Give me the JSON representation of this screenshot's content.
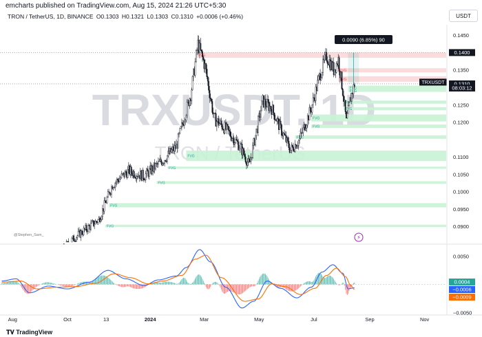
{
  "header": {
    "publish_line": "emcharts published on TradingView.com, Aug 15, 2024 21:26 UTC+5:30",
    "symbol_full": "TRON / TetherUS, 1D, BINANCE",
    "ohlc": {
      "o": "O0.1303",
      "h": "H0.1321",
      "l": "L0.1303",
      "c": "C0.1310",
      "chg": "+0.0006 (+0.46%)"
    },
    "currency": "USDT"
  },
  "watermark": {
    "symbol": "TRXUSDT, 1D",
    "name": "TRON / TetherUS"
  },
  "measure_label": "0.0090 (6.85%) 90",
  "author_tag": "@Stephen_Sam_",
  "footer": {
    "brand": "TradingView"
  },
  "colors": {
    "up": "#131722",
    "down": "#131722",
    "fvg_green": "#c8f2d5",
    "fvg_red": "#fbd7d7",
    "macd": "#2962ff",
    "signal": "#ff6d00",
    "hist_up": "#26a69a",
    "hist_down": "#ef5350"
  },
  "chart_data": [
    {
      "type": "candlestick",
      "title": "TRON / TetherUS, 1D, BINANCE",
      "ylim": [
        0.0855,
        0.148
      ],
      "y_ticks": [
        "0.1450",
        "0.1350",
        "0.1300",
        "0.1250",
        "0.1200",
        "0.1100",
        "0.1050",
        "0.1000",
        "0.0950",
        "0.0900"
      ],
      "y_tick_values": [
        0.145,
        0.135,
        0.13,
        0.125,
        0.12,
        0.11,
        0.105,
        0.1,
        0.095,
        0.09
      ],
      "x_ticks": [
        "Aug",
        "Oct",
        "13",
        "2024",
        "Mar",
        "May",
        "Jul",
        "Sep",
        "Nov"
      ],
      "x_tick_dates": [
        "2023-08-01",
        "2023-10-01",
        "2023-11-13",
        "2024-01-01",
        "2024-03-01",
        "2024-05-01",
        "2024-07-01",
        "2024-09-01",
        "2024-11-01"
      ],
      "price_labels": [
        {
          "text": "0.1400",
          "value": 0.14,
          "style": "dark"
        },
        {
          "text": "TRXUSDT",
          "value": 0.1315,
          "style": "dark"
        },
        {
          "text": "0.1310",
          "value": 0.131,
          "style": "dark"
        },
        {
          "text": "08:03:12",
          "value": 0.1298,
          "style": "dark"
        }
      ],
      "horizontal_lines": [
        0.14,
        0.131
      ],
      "fvg_zones": [
        {
          "kind": "red",
          "from": 0.1385,
          "to": 0.14,
          "start": "2024-02-22",
          "label": "FVG"
        },
        {
          "kind": "red",
          "from": 0.1343,
          "to": 0.1355,
          "start": "2024-07-28",
          "label": "FVG"
        },
        {
          "kind": "red",
          "from": 0.1316,
          "to": 0.1332,
          "start": "2024-07-28",
          "label": "FVG"
        },
        {
          "kind": "green",
          "from": 0.1293,
          "to": 0.1305,
          "start": "2024-08-08",
          "label": "FVG"
        },
        {
          "kind": "green",
          "from": 0.1287,
          "to": 0.1293,
          "start": "2024-08-08",
          "label": "FVG"
        },
        {
          "kind": "green",
          "from": 0.1253,
          "to": 0.1262,
          "start": "2024-08-03",
          "label": "FVG"
        },
        {
          "kind": "green",
          "from": 0.1234,
          "to": 0.1243,
          "start": "2024-08-03",
          "label": "FVG"
        },
        {
          "kind": "green",
          "from": 0.1202,
          "to": 0.1222,
          "start": "2024-06-28",
          "label": "FVG"
        },
        {
          "kind": "green",
          "from": 0.1183,
          "to": 0.1193,
          "start": "2024-06-28",
          "label": "FVG"
        },
        {
          "kind": "green",
          "from": 0.1152,
          "to": 0.1162,
          "start": "2024-06-10",
          "label": "FVG"
        },
        {
          "kind": "green",
          "from": 0.1088,
          "to": 0.1118,
          "start": "2024-02-10",
          "label": "FVG"
        },
        {
          "kind": "green",
          "from": 0.1066,
          "to": 0.1072,
          "start": "2024-01-20",
          "label": "FVG"
        },
        {
          "kind": "green",
          "from": 0.1023,
          "to": 0.103,
          "start": "2024-01-08",
          "label": "FVG"
        },
        {
          "kind": "green",
          "from": 0.0955,
          "to": 0.0967,
          "start": "2023-11-16",
          "label": "FVG"
        },
        {
          "kind": "green",
          "from": 0.0898,
          "to": 0.0905,
          "start": "2023-11-12",
          "label": "FVG"
        }
      ],
      "measure": {
        "from": 0.131,
        "to": 0.14,
        "date": "2024-08-14",
        "label": "0.0090 (6.85%) 90"
      },
      "anchors": [
        {
          "date": "2023-07-20",
          "value": 0.082
        },
        {
          "date": "2023-08-15",
          "value": 0.077
        },
        {
          "date": "2023-09-15",
          "value": 0.081
        },
        {
          "date": "2023-10-10",
          "value": 0.087
        },
        {
          "date": "2023-11-05",
          "value": 0.092
        },
        {
          "date": "2023-11-20",
          "value": 0.102
        },
        {
          "date": "2023-12-08",
          "value": 0.106
        },
        {
          "date": "2023-12-25",
          "value": 0.1045
        },
        {
          "date": "2024-01-15",
          "value": 0.109
        },
        {
          "date": "2024-01-30",
          "value": 0.113
        },
        {
          "date": "2024-02-15",
          "value": 0.128
        },
        {
          "date": "2024-02-23",
          "value": 0.1425
        },
        {
          "date": "2024-03-02",
          "value": 0.136
        },
        {
          "date": "2024-03-12",
          "value": 0.121
        },
        {
          "date": "2024-03-25",
          "value": 0.118
        },
        {
          "date": "2024-04-10",
          "value": 0.113
        },
        {
          "date": "2024-04-20",
          "value": 0.1075
        },
        {
          "date": "2024-05-05",
          "value": 0.126
        },
        {
          "date": "2024-05-15",
          "value": 0.124
        },
        {
          "date": "2024-05-25",
          "value": 0.118
        },
        {
          "date": "2024-06-05",
          "value": 0.112
        },
        {
          "date": "2024-06-15",
          "value": 0.115
        },
        {
          "date": "2024-06-28",
          "value": 0.124
        },
        {
          "date": "2024-07-08",
          "value": 0.134
        },
        {
          "date": "2024-07-15",
          "value": 0.139
        },
        {
          "date": "2024-07-23",
          "value": 0.135
        },
        {
          "date": "2024-07-28",
          "value": 0.138
        },
        {
          "date": "2024-08-02",
          "value": 0.129
        },
        {
          "date": "2024-08-06",
          "value": 0.12
        },
        {
          "date": "2024-08-10",
          "value": 0.126
        },
        {
          "date": "2024-08-15",
          "value": 0.131
        }
      ]
    },
    {
      "type": "line",
      "title": "MACD",
      "ylim": [
        -0.0052,
        0.0068
      ],
      "y_ticks": [
        "0.0050",
        "−0.0050"
      ],
      "y_tick_values": [
        0.005,
        -0.005
      ],
      "zero_line": 0,
      "value_labels": [
        {
          "text": "0.0004",
          "value": 0.0004,
          "color": "#26a69a"
        },
        {
          "text": "−0.0006",
          "value": -0.0006,
          "color": "#2962ff"
        },
        {
          "text": "−0.0009",
          "value": -0.0009,
          "color": "#ff6d00"
        }
      ],
      "series": [
        {
          "kind": "macd",
          "color": "#2962ff",
          "anchors": [
            [
              "2023-07-20",
              0.0006
            ],
            [
              "2023-08-05",
              0.001
            ],
            [
              "2023-08-20",
              -0.0015
            ],
            [
              "2023-09-10",
              -0.0003
            ],
            [
              "2023-10-01",
              -0.0008
            ],
            [
              "2023-10-25",
              0.0004
            ],
            [
              "2023-11-15",
              0.0025
            ],
            [
              "2023-12-05",
              0.001
            ],
            [
              "2023-12-25",
              -0.0002
            ],
            [
              "2024-01-10",
              0.0008
            ],
            [
              "2024-01-30",
              0.0015
            ],
            [
              "2024-02-10",
              0.003
            ],
            [
              "2024-02-25",
              0.0062
            ],
            [
              "2024-03-08",
              0.004
            ],
            [
              "2024-03-25",
              -0.0005
            ],
            [
              "2024-04-12",
              -0.0042
            ],
            [
              "2024-04-25",
              -0.003
            ],
            [
              "2024-05-10",
              0.0006
            ],
            [
              "2024-05-25",
              -0.0007
            ],
            [
              "2024-06-12",
              -0.0024
            ],
            [
              "2024-06-28",
              -0.0005
            ],
            [
              "2024-07-10",
              0.0022
            ],
            [
              "2024-07-22",
              0.0035
            ],
            [
              "2024-08-02",
              0.002
            ],
            [
              "2024-08-08",
              -0.0008
            ],
            [
              "2024-08-15",
              -0.0006
            ]
          ]
        },
        {
          "kind": "signal",
          "color": "#ff6d00",
          "anchors": [
            [
              "2023-07-20",
              0.0004
            ],
            [
              "2023-08-10",
              0.0006
            ],
            [
              "2023-08-28",
              -0.0008
            ],
            [
              "2023-09-20",
              -0.0005
            ],
            [
              "2023-10-10",
              -0.0004
            ],
            [
              "2023-11-01",
              0.0002
            ],
            [
              "2023-11-22",
              0.0019
            ],
            [
              "2023-12-10",
              0.0012
            ],
            [
              "2023-12-30",
              0.0001
            ],
            [
              "2024-01-15",
              0.0006
            ],
            [
              "2024-02-05",
              0.0016
            ],
            [
              "2024-02-20",
              0.0045
            ],
            [
              "2024-03-03",
              0.0052
            ],
            [
              "2024-03-20",
              0.0012
            ],
            [
              "2024-04-15",
              -0.003
            ],
            [
              "2024-04-30",
              -0.0026
            ],
            [
              "2024-05-15",
              0.0001
            ],
            [
              "2024-05-30",
              -0.0004
            ],
            [
              "2024-06-16",
              -0.0018
            ],
            [
              "2024-07-02",
              -0.0007
            ],
            [
              "2024-07-15",
              0.0016
            ],
            [
              "2024-07-26",
              0.0029
            ],
            [
              "2024-08-05",
              0.0014
            ],
            [
              "2024-08-11",
              -0.0002
            ],
            [
              "2024-08-15",
              -0.0009
            ]
          ]
        }
      ]
    }
  ]
}
